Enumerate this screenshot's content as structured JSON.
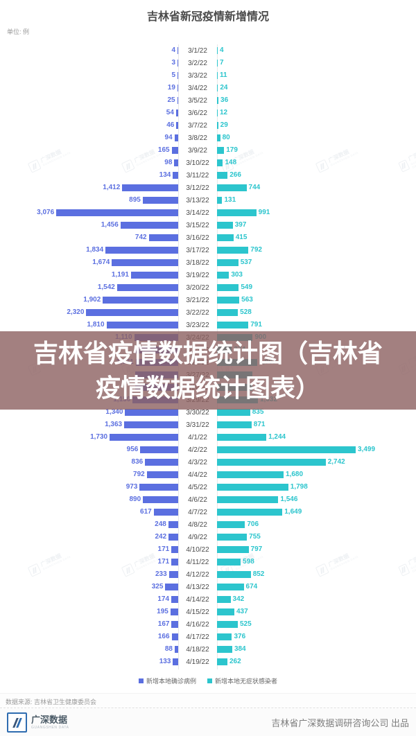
{
  "page": {
    "title": "吉林省新冠疫情新增情况",
    "unit_label": "单位: 例"
  },
  "overlay_banner": {
    "line1": "吉林省疫情数据统计图（吉林省",
    "line2": "疫情数据统计图表）"
  },
  "legend": [
    {
      "label": "新增本地确诊病例",
      "color": "#5b6fe0"
    },
    {
      "label": "新增本地无症状感染者",
      "color": "#2cc5cd"
    }
  ],
  "watermark": {
    "text": "广深数据",
    "subtext": "GUANGSHEN DATA"
  },
  "source_line": "数据来源: 吉林省卫生健康委员会",
  "footer": {
    "logo_text": "广深数据",
    "logo_subtext": "GUANGSHEN DATA",
    "credit": "吉林省广深数据调研咨询公司  出品"
  },
  "chart_data": {
    "type": "bar",
    "variant": "diverging-horizontal",
    "title": "吉林省新冠疫情新增情况",
    "unit": "例",
    "series": [
      {
        "name": "新增本地确诊病例",
        "side": "left",
        "color": "#5b6fe0"
      },
      {
        "name": "新增本地无症状感染者",
        "side": "right",
        "color": "#2cc5cd"
      }
    ],
    "value_scale_note": "both sides share one linear scale; max visible value 3499",
    "rows": [
      {
        "date": "3/1/22",
        "confirmed": 4,
        "asymptomatic": 4
      },
      {
        "date": "3/2/22",
        "confirmed": 3,
        "asymptomatic": 7
      },
      {
        "date": "3/3/22",
        "confirmed": 5,
        "asymptomatic": 11
      },
      {
        "date": "3/4/22",
        "confirmed": 19,
        "asymptomatic": 24
      },
      {
        "date": "3/5/22",
        "confirmed": 25,
        "asymptomatic": 36
      },
      {
        "date": "3/6/22",
        "confirmed": 54,
        "asymptomatic": 12
      },
      {
        "date": "3/7/22",
        "confirmed": 46,
        "asymptomatic": 29
      },
      {
        "date": "3/8/22",
        "confirmed": 94,
        "asymptomatic": 80
      },
      {
        "date": "3/9/22",
        "confirmed": 165,
        "asymptomatic": 179
      },
      {
        "date": "3/10/22",
        "confirmed": 98,
        "asymptomatic": 148
      },
      {
        "date": "3/11/22",
        "confirmed": 134,
        "asymptomatic": 266
      },
      {
        "date": "3/12/22",
        "confirmed": 1412,
        "asymptomatic": 744
      },
      {
        "date": "3/13/22",
        "confirmed": 895,
        "asymptomatic": 131
      },
      {
        "date": "3/14/22",
        "confirmed": 3076,
        "asymptomatic": 991
      },
      {
        "date": "3/15/22",
        "confirmed": 1456,
        "asymptomatic": 397
      },
      {
        "date": "3/16/22",
        "confirmed": 742,
        "asymptomatic": 415
      },
      {
        "date": "3/17/22",
        "confirmed": 1834,
        "asymptomatic": 792
      },
      {
        "date": "3/18/22",
        "confirmed": 1674,
        "asymptomatic": 537
      },
      {
        "date": "3/19/22",
        "confirmed": 1191,
        "asymptomatic": 303
      },
      {
        "date": "3/20/22",
        "confirmed": 1542,
        "asymptomatic": 549
      },
      {
        "date": "3/21/22",
        "confirmed": 1902,
        "asymptomatic": 563
      },
      {
        "date": "3/22/22",
        "confirmed": 2320,
        "asymptomatic": 528
      },
      {
        "date": "3/23/22",
        "confirmed": 1810,
        "asymptomatic": 791
      },
      {
        "date": "3/24/22",
        "confirmed": 1110,
        "asymptomatic": 900
      },
      {
        "date": "3/25/22",
        "confirmed": null,
        "asymptomatic": 374
      },
      {
        "date": "3/26/22",
        "confirmed": 1071,
        "asymptomatic": 1007
      },
      {
        "date": "3/27/22",
        "confirmed": null,
        "asymptomatic": null
      },
      {
        "date": "3/28/22",
        "confirmed": null,
        "asymptomatic": null
      },
      {
        "date": "3/29/22",
        "confirmed": 1150,
        "asymptomatic": 1032
      },
      {
        "date": "3/30/22",
        "confirmed": 1340,
        "asymptomatic": 835
      },
      {
        "date": "3/31/22",
        "confirmed": 1363,
        "asymptomatic": 871
      },
      {
        "date": "4/1/22",
        "confirmed": 1730,
        "asymptomatic": 1244
      },
      {
        "date": "4/2/22",
        "confirmed": 956,
        "asymptomatic": 3499
      },
      {
        "date": "4/3/22",
        "confirmed": 836,
        "asymptomatic": 2742
      },
      {
        "date": "4/4/22",
        "confirmed": 792,
        "asymptomatic": 1680
      },
      {
        "date": "4/5/22",
        "confirmed": 973,
        "asymptomatic": 1798
      },
      {
        "date": "4/6/22",
        "confirmed": 890,
        "asymptomatic": 1546
      },
      {
        "date": "4/7/22",
        "confirmed": 617,
        "asymptomatic": 1649
      },
      {
        "date": "4/8/22",
        "confirmed": 248,
        "asymptomatic": 706
      },
      {
        "date": "4/9/22",
        "confirmed": 242,
        "asymptomatic": 755
      },
      {
        "date": "4/10/22",
        "confirmed": 171,
        "asymptomatic": 797
      },
      {
        "date": "4/11/22",
        "confirmed": 171,
        "asymptomatic": 598
      },
      {
        "date": "4/12/22",
        "confirmed": 233,
        "asymptomatic": 852
      },
      {
        "date": "4/13/22",
        "confirmed": 325,
        "asymptomatic": 674
      },
      {
        "date": "4/14/22",
        "confirmed": 174,
        "asymptomatic": 342
      },
      {
        "date": "4/15/22",
        "confirmed": 195,
        "asymptomatic": 437
      },
      {
        "date": "4/16/22",
        "confirmed": 167,
        "asymptomatic": 525
      },
      {
        "date": "4/17/22",
        "confirmed": 166,
        "asymptomatic": 376
      },
      {
        "date": "4/18/22",
        "confirmed": 88,
        "asymptomatic": 384
      },
      {
        "date": "4/19/22",
        "confirmed": 133,
        "asymptomatic": 262
      }
    ]
  }
}
